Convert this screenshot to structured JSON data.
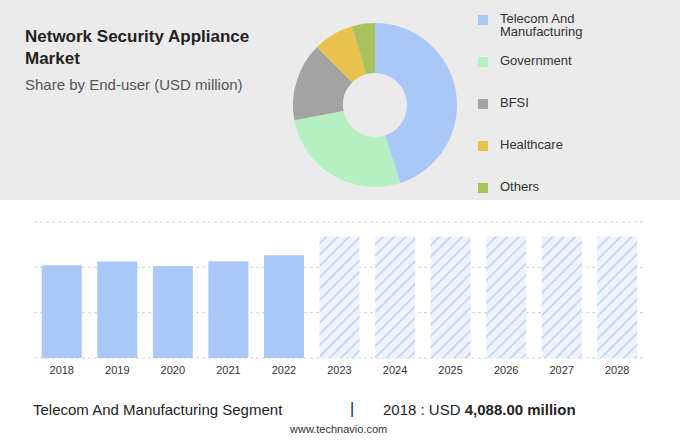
{
  "chart_data": [
    {
      "type": "pie",
      "title": "Network Security Appliance Market",
      "subtitle": "Share by End-user (USD million)",
      "categories": [
        "Telecom And Manufacturing",
        "Government",
        "BFSI",
        "Healthcare",
        "Others"
      ],
      "values": [
        45,
        27,
        15.5,
        8,
        4.5
      ],
      "colors": [
        "#a9c8f8",
        "#b5f0c2",
        "#a3a3a3",
        "#e9c24d",
        "#a8c25c"
      ],
      "legend": "right"
    },
    {
      "type": "bar",
      "categories": [
        "2018",
        "2019",
        "2020",
        "2021",
        "2022",
        "2023",
        "2024",
        "2025",
        "2026",
        "2027",
        "2028"
      ],
      "series": [
        {
          "color": "#a9c8f8",
          "line_style": "solid",
          "values": [
            4088,
            4260,
            4060,
            4264,
            4528,
            null,
            null,
            null,
            null,
            null,
            null
          ]
        },
        {
          "color": "#b9cff3",
          "line_style": "hatched",
          "values": [
            null,
            null,
            null,
            null,
            null,
            5360,
            5360,
            5360,
            5360,
            5360,
            5360
          ]
        }
      ],
      "ylim": [
        0,
        6000
      ],
      "yticks": [
        0,
        1000,
        2000,
        3000,
        4000,
        5000,
        6000
      ],
      "grid": true,
      "tick_labels": "x"
    }
  ],
  "footer": {
    "segment": "Telecom And Manufacturing Segment",
    "separator": "|",
    "year": "2018 : USD",
    "value": "4,088.00",
    "unit": "million"
  },
  "source": "www.technavio.com"
}
